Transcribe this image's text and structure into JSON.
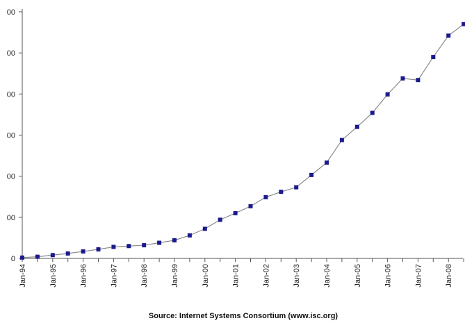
{
  "chart_data": {
    "type": "line",
    "source": "Source: Internet Systems Consortium (www.isc.org)",
    "y_tick_labels": [
      "0",
      "00",
      "00",
      "00",
      "00",
      "00",
      "00"
    ],
    "x_tick_labels": [
      "Jan-94",
      "Jan-95",
      "Jan-96",
      "Jan-97",
      "Jan-98",
      "Jan-99",
      "Jan-00",
      "Jan-01",
      "Jan-02",
      "Jan-03",
      "Jan-04",
      "Jan-05",
      "Jan-06",
      "Jan-07",
      "Jan-08"
    ],
    "ylim": [
      0,
      6
    ],
    "grid": false,
    "legend": "none",
    "series": [
      {
        "color": "#1a1a8c",
        "x": [
          "Jan-94",
          "Jul-94",
          "Jan-95",
          "Jul-95",
          "Jan-96",
          "Jul-96",
          "Jan-97",
          "Jul-97",
          "Jan-98",
          "Jul-98",
          "Jan-99",
          "Jul-99",
          "Jan-00",
          "Jul-00",
          "Jan-01",
          "Jul-01",
          "Jan-02",
          "Jul-02",
          "Jan-03",
          "Jul-03",
          "Jan-04",
          "Jul-04",
          "Jan-05",
          "Jul-05",
          "Jan-06",
          "Jul-06",
          "Jan-07",
          "Jul-07",
          "Jan-08",
          "Jul-08"
        ],
        "values": [
          0.02,
          0.04,
          0.08,
          0.12,
          0.17,
          0.22,
          0.28,
          0.3,
          0.32,
          0.38,
          0.44,
          0.56,
          0.72,
          0.94,
          1.1,
          1.27,
          1.49,
          1.62,
          1.73,
          2.03,
          2.33,
          2.88,
          3.2,
          3.54,
          3.99,
          4.38,
          4.34,
          4.9,
          5.42,
          5.7
        ]
      }
    ]
  }
}
